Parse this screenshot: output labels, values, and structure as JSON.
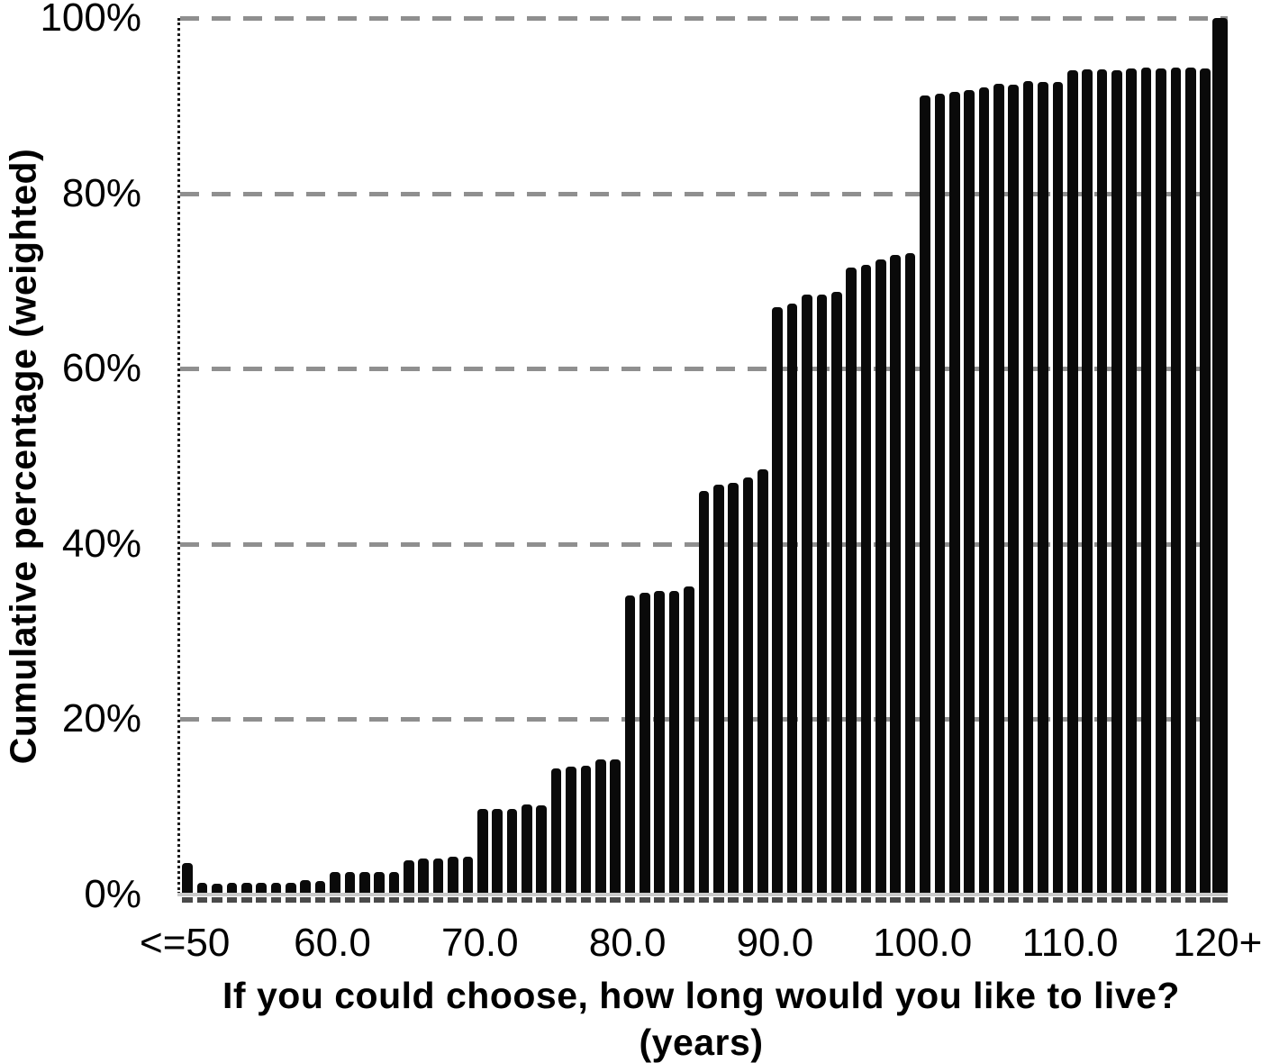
{
  "figure": {
    "y_axis_title": "Cumulative percentage (weighted)",
    "x_axis_title_line1": "If you could choose, how long would you like to live?",
    "x_axis_title_line2": "(years)"
  },
  "chart_data": {
    "type": "bar",
    "title": "",
    "xlabel": "If you could choose, how long would you like to live? (years)",
    "ylabel": "Cumulative percentage (weighted)",
    "ylim": [
      0,
      100
    ],
    "grid": "horizontal-dashed",
    "legend": "none",
    "bar_color": "#0a0a0a",
    "gridline_color": "#8f8f8f",
    "categories": [
      "<=50",
      "51",
      "52",
      "53",
      "54",
      "55",
      "56",
      "57",
      "58",
      "59",
      "60",
      "61",
      "62",
      "63",
      "64",
      "65",
      "66",
      "67",
      "68",
      "69",
      "70",
      "71",
      "72",
      "73",
      "74",
      "75",
      "76",
      "77",
      "78",
      "79",
      "80",
      "81",
      "82",
      "83",
      "84",
      "85",
      "86",
      "87",
      "88",
      "89",
      "90",
      "91",
      "92",
      "93",
      "94",
      "95",
      "96",
      "97",
      "98",
      "99",
      "100",
      "101",
      "102",
      "103",
      "104",
      "105",
      "106",
      "107",
      "108",
      "109",
      "110",
      "111",
      "112",
      "113",
      "114",
      "115",
      "116",
      "117",
      "118",
      "119",
      "120+"
    ],
    "values": [
      3.6,
      1.3,
      1.2,
      1.3,
      1.3,
      1.3,
      1.3,
      1.3,
      1.6,
      1.5,
      2.6,
      2.6,
      2.6,
      2.6,
      2.6,
      3.9,
      4.1,
      4.1,
      4.3,
      4.3,
      9.8,
      9.8,
      9.8,
      10.3,
      10.2,
      14.4,
      14.6,
      14.7,
      15.4,
      15.4,
      34.1,
      34.4,
      34.6,
      34.6,
      35.2,
      46.0,
      46.8,
      47.0,
      47.6,
      48.5,
      67.0,
      67.4,
      68.4,
      68.5,
      68.8,
      71.5,
      71.8,
      72.5,
      73.0,
      73.2,
      91.2,
      91.4,
      91.6,
      91.8,
      92.1,
      92.5,
      92.4,
      92.8,
      92.7,
      92.7,
      94.0,
      94.1,
      94.1,
      94.0,
      94.2,
      94.3,
      94.2,
      94.3,
      94.3,
      94.2,
      100.0
    ],
    "x_tick_labels": [
      "<=50",
      "60.0",
      "70.0",
      "80.0",
      "90.0",
      "100.0",
      "110.0",
      "120+"
    ],
    "x_tick_slot_indices": [
      0,
      10,
      20,
      30,
      40,
      50,
      60,
      70
    ],
    "y_tick_labels": [
      "100%",
      "80%",
      "60%",
      "40%",
      "20%",
      "0%"
    ],
    "y_tick_values": [
      100,
      80,
      60,
      40,
      20,
      0
    ]
  }
}
